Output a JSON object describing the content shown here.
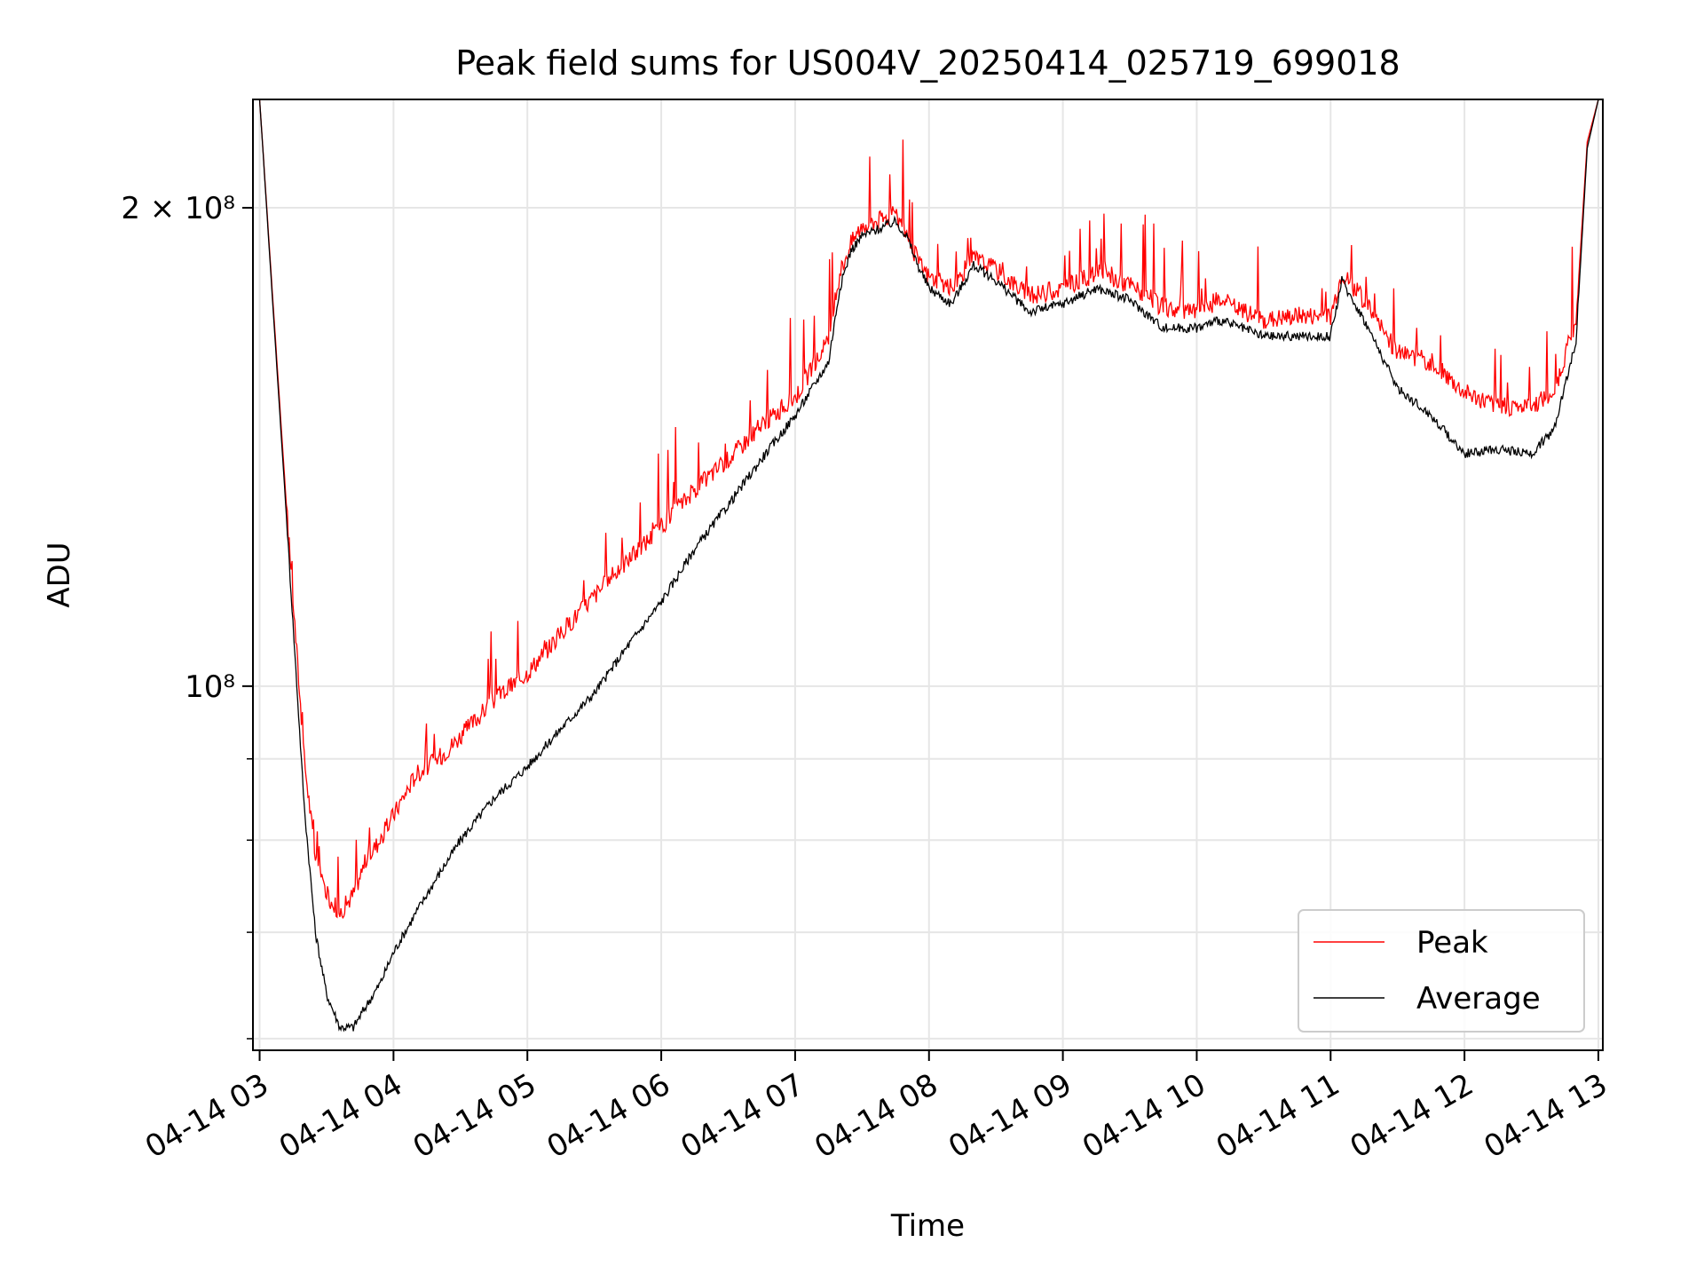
{
  "chart_data": {
    "type": "line",
    "title": "Peak field sums for US004V_20250414_025719_699018",
    "xlabel": "Time",
    "ylabel": "ADU",
    "yscale": "log",
    "grid": true,
    "legend_position": "lower right",
    "xlim": [
      "2025-04-14 02:57",
      "2025-04-14 13:02"
    ],
    "ylim": [
      59000000,
      234000000
    ],
    "x_tick_labels": [
      "04-14 03",
      "04-14 04",
      "04-14 05",
      "04-14 06",
      "04-14 07",
      "04-14 08",
      "04-14 09",
      "04-14 10",
      "04-14 11",
      "04-14 12",
      "04-14 13"
    ],
    "x_tick_hours": [
      3,
      4,
      5,
      6,
      7,
      8,
      9,
      10,
      11,
      12,
      13
    ],
    "y_major_ticks": [
      {
        "value": 100000000,
        "label": "10⁸"
      },
      {
        "value": 200000000,
        "label": "2 × 10⁸"
      }
    ],
    "y_minor_ticks": [
      60000000,
      70000000,
      80000000,
      90000000
    ],
    "series": [
      {
        "name": "Peak",
        "color": "#ff0000",
        "x": [
          "03:00",
          "03:12",
          "03:20",
          "03:25",
          "03:30",
          "03:36",
          "03:42",
          "03:48",
          "03:54",
          "04:00",
          "04:10",
          "04:20",
          "04:30",
          "04:45",
          "05:00",
          "05:15",
          "05:30",
          "05:45",
          "06:00",
          "06:15",
          "06:30",
          "06:45",
          "07:00",
          "07:15",
          "07:20",
          "07:25",
          "07:30",
          "07:45",
          "07:50",
          "07:55",
          "08:00",
          "08:10",
          "08:20",
          "08:30",
          "08:45",
          "09:00",
          "09:15",
          "09:30",
          "09:45",
          "10:00",
          "10:10",
          "10:30",
          "10:45",
          "11:00",
          "11:05",
          "11:15",
          "11:30",
          "11:45",
          "12:00",
          "12:15",
          "12:30",
          "12:40",
          "12:50",
          "12:55",
          "13:00"
        ],
        "values": [
          234000000,
          130000000,
          90000000,
          78000000,
          74000000,
          72000000,
          74000000,
          78000000,
          80000000,
          83000000,
          88000000,
          90000000,
          93000000,
          98000000,
          102000000,
          108000000,
          114000000,
          120000000,
          126000000,
          133000000,
          139000000,
          146000000,
          152000000,
          165000000,
          182000000,
          190000000,
          195000000,
          198000000,
          193000000,
          185000000,
          181000000,
          178000000,
          186000000,
          183000000,
          176000000,
          178000000,
          182000000,
          179000000,
          173000000,
          172000000,
          175000000,
          170000000,
          171000000,
          171000000,
          182000000,
          175000000,
          162000000,
          160000000,
          153000000,
          150000000,
          150000000,
          153000000,
          170000000,
          220000000,
          234000000
        ]
      },
      {
        "name": "Average",
        "color": "#000000",
        "x": [
          "03:00",
          "03:12",
          "03:20",
          "03:25",
          "03:30",
          "03:36",
          "03:42",
          "03:48",
          "03:54",
          "04:00",
          "04:10",
          "04:20",
          "04:30",
          "04:45",
          "05:00",
          "05:15",
          "05:30",
          "05:45",
          "06:00",
          "06:15",
          "06:30",
          "06:45",
          "07:00",
          "07:15",
          "07:20",
          "07:25",
          "07:30",
          "07:45",
          "07:50",
          "07:55",
          "08:00",
          "08:10",
          "08:20",
          "08:30",
          "08:45",
          "09:00",
          "09:15",
          "09:30",
          "09:45",
          "10:00",
          "10:10",
          "10:30",
          "10:45",
          "11:00",
          "11:05",
          "11:15",
          "11:30",
          "11:45",
          "12:00",
          "12:15",
          "12:30",
          "12:40",
          "12:50",
          "12:55",
          "13:00"
        ],
        "values": [
          234000000,
          128000000,
          84000000,
          70000000,
          64000000,
          61000000,
          61000000,
          63000000,
          65000000,
          68000000,
          72000000,
          76000000,
          80000000,
          85000000,
          89000000,
          94000000,
          99000000,
          106000000,
          113000000,
          122000000,
          130000000,
          139000000,
          148000000,
          160000000,
          178000000,
          188000000,
          192000000,
          196000000,
          192000000,
          184000000,
          178000000,
          174000000,
          184000000,
          180000000,
          172000000,
          174000000,
          178000000,
          175000000,
          168000000,
          168000000,
          170000000,
          166000000,
          166000000,
          166000000,
          180000000,
          170000000,
          154000000,
          148000000,
          140000000,
          141000000,
          140000000,
          145000000,
          165000000,
          218000000,
          234000000
        ]
      }
    ]
  }
}
